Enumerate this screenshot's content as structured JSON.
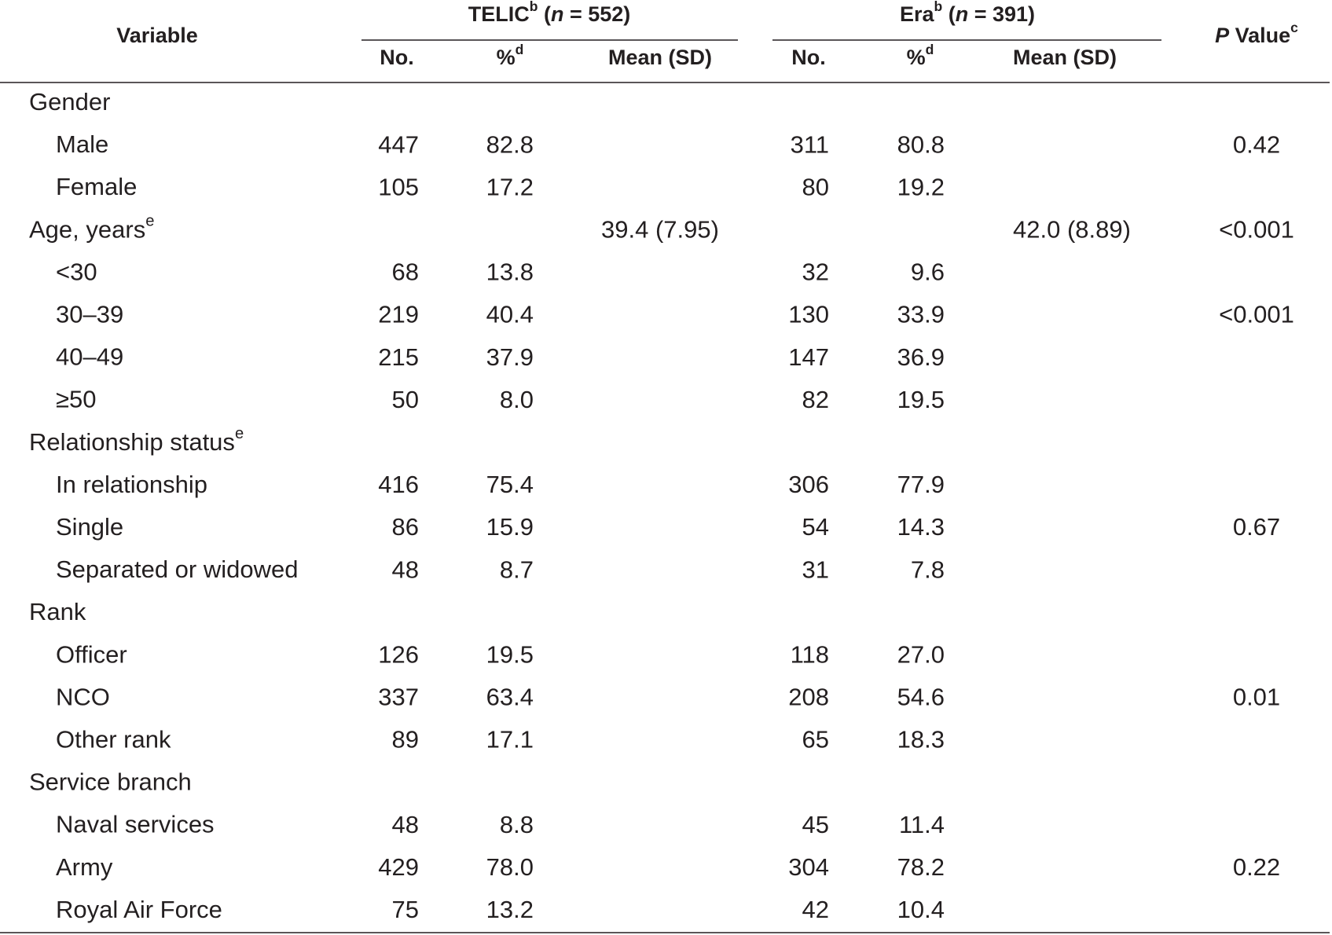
{
  "table": {
    "header": {
      "variable": "Variable",
      "groups": [
        {
          "name": "TELIC",
          "sup": "b",
          "open": " (",
          "n": "n",
          "count": " = 552)"
        },
        {
          "name": "Era",
          "sup": "b",
          "open": " (",
          "n": "n",
          "count": " = 391)"
        }
      ],
      "columns": [
        {
          "text": "No."
        },
        {
          "text": "%",
          "sup": "d"
        },
        {
          "text": "Mean (SD)"
        },
        {
          "text": "No."
        },
        {
          "text": "%",
          "sup": "d"
        },
        {
          "text": "Mean (SD)"
        }
      ],
      "p_value": {
        "p": "P",
        "text": " Value",
        "sup": "c"
      }
    },
    "rows": [
      {
        "label": "Gender",
        "level": 0,
        "cells": [
          null,
          null,
          null,
          null,
          null,
          null,
          null
        ]
      },
      {
        "label": "Male",
        "level": 1,
        "cells": [
          "447",
          "82.8",
          null,
          "311",
          "80.8",
          null,
          "0.42"
        ]
      },
      {
        "label": "Female",
        "level": 1,
        "cells": [
          "105",
          "17.2",
          null,
          "80",
          "19.2",
          null,
          null
        ]
      },
      {
        "label": "Age, years",
        "sup": "e",
        "level": 0,
        "cells": [
          null,
          null,
          "39.4 (7.95)",
          null,
          null,
          "42.0 (8.89)",
          "<0.001"
        ]
      },
      {
        "label": "<30",
        "level": 1,
        "cells": [
          "68",
          "13.8",
          null,
          "32",
          "9.6",
          null,
          null
        ]
      },
      {
        "label": "30–39",
        "level": 1,
        "cells": [
          "219",
          "40.4",
          null,
          "130",
          "33.9",
          null,
          "<0.001"
        ]
      },
      {
        "label": "40–49",
        "level": 1,
        "cells": [
          "215",
          "37.9",
          null,
          "147",
          "36.9",
          null,
          null
        ]
      },
      {
        "label": "≥50",
        "level": 1,
        "cells": [
          "50",
          "8.0",
          null,
          "82",
          "19.5",
          null,
          null
        ]
      },
      {
        "label": "Relationship status",
        "sup": "e",
        "level": 0,
        "cells": [
          null,
          null,
          null,
          null,
          null,
          null,
          null
        ]
      },
      {
        "label": "In relationship",
        "level": 1,
        "cells": [
          "416",
          "75.4",
          null,
          "306",
          "77.9",
          null,
          null
        ]
      },
      {
        "label": "Single",
        "level": 1,
        "cells": [
          "86",
          "15.9",
          null,
          "54",
          "14.3",
          null,
          "0.67"
        ]
      },
      {
        "label": "Separated or widowed",
        "level": 1,
        "cells": [
          "48",
          "8.7",
          null,
          "31",
          "7.8",
          null,
          null
        ]
      },
      {
        "label": "Rank",
        "level": 0,
        "cells": [
          null,
          null,
          null,
          null,
          null,
          null,
          null
        ]
      },
      {
        "label": "Officer",
        "level": 1,
        "cells": [
          "126",
          "19.5",
          null,
          "118",
          "27.0",
          null,
          null
        ]
      },
      {
        "label": "NCO",
        "level": 1,
        "cells": [
          "337",
          "63.4",
          null,
          "208",
          "54.6",
          null,
          "0.01"
        ]
      },
      {
        "label": "Other rank",
        "level": 1,
        "cells": [
          "89",
          "17.1",
          null,
          "65",
          "18.3",
          null,
          null
        ]
      },
      {
        "label": "Service branch",
        "level": 0,
        "cells": [
          null,
          null,
          null,
          null,
          null,
          null,
          null
        ]
      },
      {
        "label": "Naval services",
        "level": 1,
        "cells": [
          "48",
          "8.8",
          null,
          "45",
          "11.4",
          null,
          null
        ]
      },
      {
        "label": "Army",
        "level": 1,
        "cells": [
          "429",
          "78.0",
          null,
          "304",
          "78.2",
          null,
          "0.22"
        ]
      },
      {
        "label": "Royal Air Force",
        "level": 1,
        "cells": [
          "75",
          "13.2",
          null,
          "42",
          "10.4",
          null,
          null
        ]
      }
    ]
  }
}
